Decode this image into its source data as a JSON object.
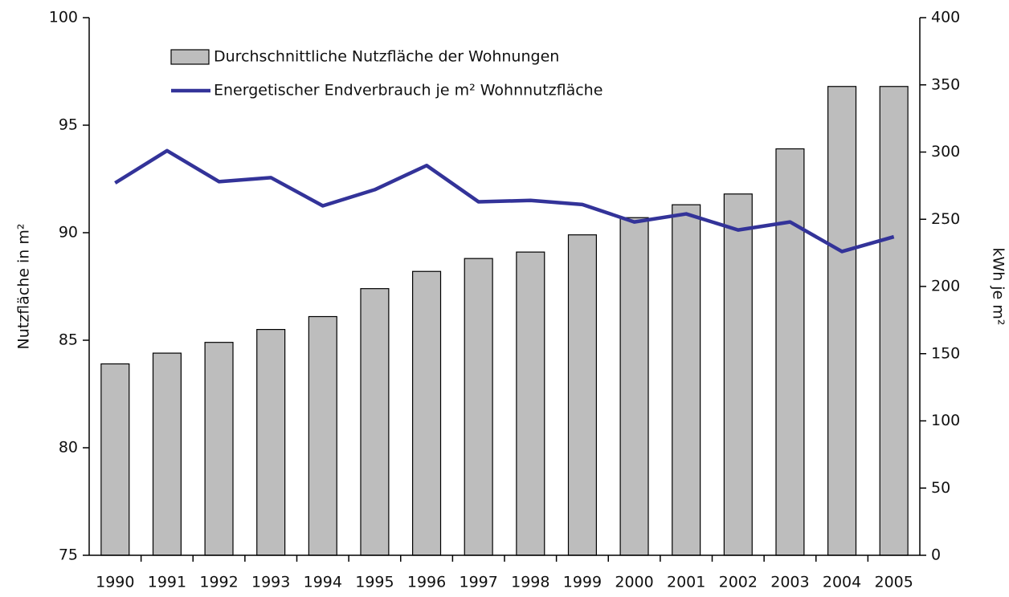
{
  "chart_data": {
    "type": "bar_line",
    "categories": [
      "1990",
      "1991",
      "1992",
      "1993",
      "1994",
      "1995",
      "1996",
      "1997",
      "1998",
      "1999",
      "2000",
      "2001",
      "2002",
      "2003",
      "2004",
      "2005"
    ],
    "series": [
      {
        "name": "Durchschnittliche Nutzfläche der Wohnungen",
        "type": "bar",
        "color": "#bdbdbd",
        "values": [
          83.9,
          84.4,
          84.9,
          85.5,
          86.1,
          87.4,
          88.2,
          88.8,
          89.1,
          89.9,
          90.7,
          91.3,
          91.8,
          93.9,
          96.8,
          96.8
        ]
      },
      {
        "name": "Energetischer Endverbrauch je m² Wohnnutzfläche",
        "type": "line",
        "color": "#333399",
        "axis": "y2",
        "values": [
          277,
          301,
          278,
          281,
          260,
          272,
          290,
          263,
          264,
          261,
          248,
          254,
          242,
          248,
          226,
          237
        ]
      }
    ],
    "ylabel": "Nutzfläche in m²",
    "y2label": "kWh je m²",
    "ylim": [
      75,
      100
    ],
    "yticks": [
      75,
      80,
      85,
      90,
      95,
      100
    ],
    "y2lim": [
      0,
      400
    ],
    "y2ticks": [
      0,
      50,
      100,
      150,
      200,
      250,
      300,
      350,
      400
    ],
    "grid": false,
    "legend": "top-left"
  }
}
